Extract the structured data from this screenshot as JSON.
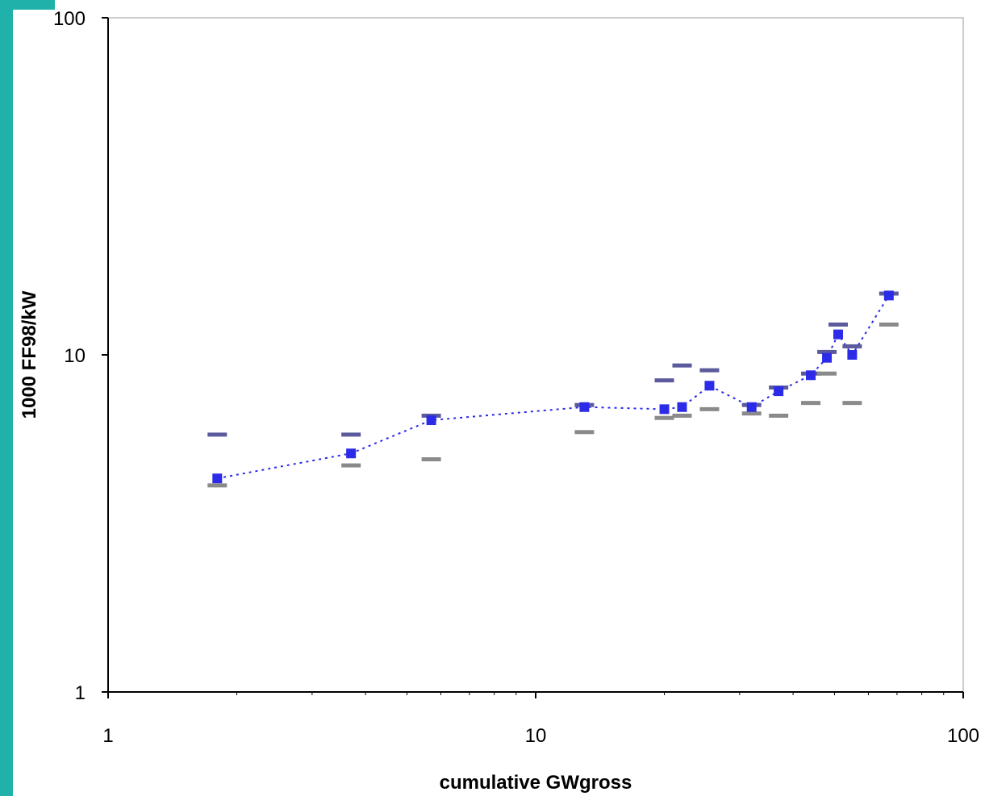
{
  "colors": {
    "accent": "#20b2aa",
    "cost_marker": "#2b2be8",
    "upper_band": "#5a5a9c",
    "lower_band": "#8a8a8a",
    "connector": "#2b2be8"
  },
  "chart_data": {
    "type": "scatter",
    "xlabel": "cumulative GWgross",
    "ylabel": "1000 FF98/kW",
    "xscale": "log",
    "yscale": "log",
    "xlim": [
      1,
      100
    ],
    "ylim": [
      1,
      100
    ],
    "x_ticks": [
      "1",
      "10",
      "100"
    ],
    "y_ticks": [
      "100",
      "10",
      "1"
    ],
    "grid": false,
    "legend": "none",
    "series": [
      {
        "marker": "square",
        "connected": true,
        "x": [
          1.8,
          3.7,
          5.7,
          13.0,
          20.0,
          22.0,
          25.5,
          32.0,
          37.0,
          44.0,
          48.0,
          51.0,
          55.0,
          67.0
        ],
        "y": [
          4.3,
          5.1,
          6.4,
          7.0,
          6.9,
          7.0,
          8.1,
          7.0,
          7.8,
          8.7,
          9.8,
          11.5,
          10.0,
          15.0
        ]
      },
      {
        "marker": "dash",
        "x": [
          1.8,
          3.7,
          5.7,
          13.0,
          20.0,
          22.0,
          25.5,
          32.0,
          37.0,
          44.0,
          48.0,
          51.0,
          55.0,
          67.0
        ],
        "y": [
          5.8,
          5.8,
          6.6,
          7.1,
          8.4,
          9.3,
          9.0,
          7.1,
          8.0,
          8.8,
          10.2,
          12.3,
          10.6,
          15.2
        ]
      },
      {
        "marker": "dash",
        "x": [
          1.8,
          3.7,
          5.7,
          13.0,
          20.0,
          22.0,
          25.5,
          32.0,
          37.0,
          44.0,
          48.0,
          55.0,
          67.0
        ],
        "y": [
          4.1,
          4.7,
          4.9,
          5.9,
          6.5,
          6.6,
          6.9,
          6.7,
          6.6,
          7.2,
          8.8,
          7.2,
          12.3
        ]
      }
    ]
  }
}
